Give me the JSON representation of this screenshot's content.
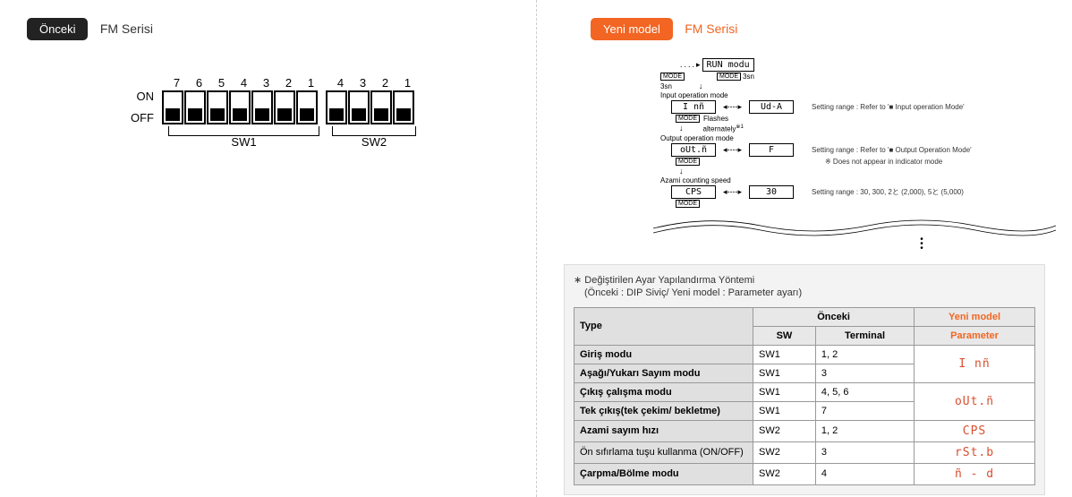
{
  "left": {
    "badge": "Önceki",
    "series": "FM Serisi",
    "dip": {
      "on_label": "ON",
      "off_label": "OFF",
      "sw1_numbers": [
        "7",
        "6",
        "5",
        "4",
        "3",
        "2",
        "1"
      ],
      "sw2_numbers": [
        "4",
        "3",
        "2",
        "1"
      ],
      "sw1_states": [
        "off",
        "off",
        "off",
        "off",
        "off",
        "off",
        "off"
      ],
      "sw2_states": [
        "off",
        "off",
        "off",
        "off"
      ],
      "sw1_label": "SW1",
      "sw2_label": "SW2"
    }
  },
  "right": {
    "badge": "Yeni model",
    "series": "FM Serisi",
    "flow": {
      "run_mode": "RUN modu",
      "mode_btn": "MODE",
      "time_3s": "3sn",
      "input_op_label": "Input operation mode",
      "input_box1": "I nñ",
      "input_box2": "Ud-A",
      "flashes": "Flashes",
      "alternately": "alternately",
      "input_note": "Setting range : Refer to '■ Input operation Mode'",
      "output_op_label": "Output operation mode",
      "output_box1": "oUt.ñ",
      "output_box2": "F",
      "output_note1": "Setting range : Refer to '■ Output Operation Mode'",
      "output_note2": "※ Does not appear in indicator mode",
      "max_count_label": "Azami counting speed",
      "cps_box": "CPS",
      "cps_val": "30",
      "cps_note": "Setting range : 30, 300, 2と (2,000), 5と (5,000)"
    },
    "table": {
      "title": "∗ Değiştirilen Ayar Yapılandırma Yöntemi",
      "subtitle": "(Önceki : DIP Siviç/ Yeni model : Parameter ayarı)",
      "head_type": "Type",
      "head_prev": "Önceki",
      "head_sw": "SW",
      "head_terminal": "Terminal",
      "head_new": "Yeni model",
      "head_param": "Parameter",
      "rows": [
        {
          "type": "Giriş modu",
          "sw": "SW1",
          "term": "1, 2",
          "param": "I nñ",
          "rowspan": 2,
          "first": true
        },
        {
          "type": "Aşağı/Yukarı Sayım modu",
          "sw": "SW1",
          "term": "3"
        },
        {
          "type": "Çıkış çalışma modu",
          "sw": "SW1",
          "term": "4, 5, 6",
          "param": "oUt.ñ",
          "rowspan": 2,
          "first": true
        },
        {
          "type": "Tek çıkış(tek çekim/ bekletme)",
          "sw": "SW1",
          "term": "7"
        },
        {
          "type": "Azami sayım hızı",
          "sw": "SW2",
          "term": "1, 2",
          "param": "CPS",
          "rowspan": 1,
          "first": true
        },
        {
          "type": "Ön sıfırlama tuşu kullanma (ON/OFF)",
          "sw": "SW2",
          "term": "3",
          "param": "rSt.b",
          "rowspan": 1,
          "first": true
        },
        {
          "type": "Çarpma/Bölme modu",
          "sw": "SW2",
          "term": "4",
          "param": "ñ - d",
          "rowspan": 1,
          "first": true
        }
      ]
    }
  },
  "colors": {
    "badge_dark": "#222222",
    "badge_orange": "#f26522",
    "text_orange": "#f26522",
    "seg_color": "#d94f2f",
    "border": "#999999",
    "th_bg": "#e8e8e8",
    "section_bg": "#f3f3f3"
  }
}
